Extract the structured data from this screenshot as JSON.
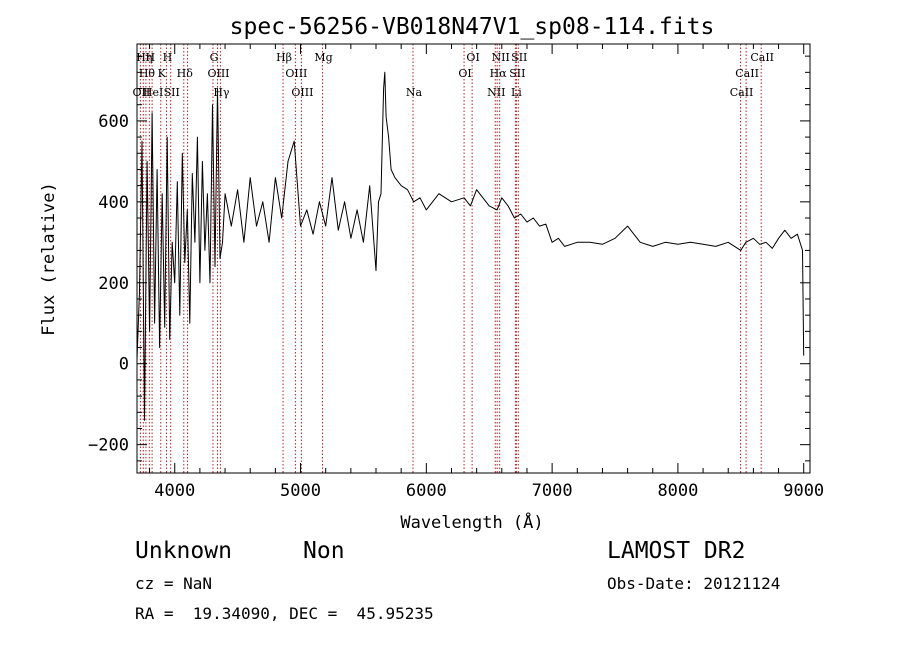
{
  "chart_data": {
    "type": "line",
    "title": "spec-56256-VB018N47V1_sp08-114.fits",
    "xlabel": "Wavelength (Å)",
    "ylabel": "Flux (relative)",
    "xlim": [
      3700,
      9050
    ],
    "ylim": [
      -270,
      790
    ],
    "x_ticks": [
      4000,
      5000,
      6000,
      7000,
      8000,
      9000
    ],
    "y_ticks": [
      -200,
      0,
      200,
      400,
      600
    ],
    "x_tick_labels": [
      "4000",
      "5000",
      "6000",
      "7000",
      "8000",
      "9000"
    ],
    "y_tick_labels": [
      "−200",
      "0",
      "200",
      "400",
      "600"
    ],
    "grid": false,
    "series": [
      {
        "color": "#000000",
        "x": [
          3700,
          3720,
          3740,
          3760,
          3780,
          3800,
          3820,
          3840,
          3860,
          3880,
          3900,
          3920,
          3940,
          3960,
          3980,
          4000,
          4020,
          4040,
          4060,
          4080,
          4100,
          4120,
          4140,
          4160,
          4180,
          4200,
          4220,
          4240,
          4260,
          4280,
          4300,
          4320,
          4340,
          4360,
          4380,
          4400,
          4450,
          4500,
          4550,
          4600,
          4650,
          4700,
          4750,
          4800,
          4850,
          4900,
          4950,
          5000,
          5050,
          5100,
          5150,
          5200,
          5250,
          5300,
          5350,
          5400,
          5450,
          5500,
          5550,
          5600,
          5620,
          5640,
          5660,
          5670,
          5680,
          5700,
          5720,
          5750,
          5800,
          5850,
          5900,
          5950,
          6000,
          6100,
          6200,
          6300,
          6350,
          6400,
          6500,
          6563,
          6600,
          6650,
          6700,
          6750,
          6800,
          6850,
          6900,
          6950,
          7000,
          7050,
          7100,
          7200,
          7300,
          7400,
          7500,
          7600,
          7700,
          7800,
          7900,
          8000,
          8100,
          8200,
          8300,
          8400,
          8500,
          8540,
          8600,
          8650,
          8700,
          8750,
          8800,
          8850,
          8900,
          8950,
          8990,
          9000
        ],
        "y": [
          10,
          180,
          550,
          -140,
          500,
          80,
          620,
          100,
          480,
          40,
          420,
          90,
          560,
          60,
          300,
          200,
          450,
          120,
          520,
          250,
          380,
          100,
          470,
          300,
          560,
          200,
          500,
          280,
          420,
          200,
          640,
          240,
          680,
          260,
          300,
          420,
          340,
          430,
          300,
          460,
          340,
          400,
          300,
          460,
          360,
          500,
          550,
          340,
          380,
          320,
          400,
          340,
          460,
          330,
          400,
          310,
          380,
          300,
          440,
          230,
          400,
          420,
          680,
          720,
          610,
          560,
          480,
          460,
          440,
          430,
          400,
          410,
          380,
          420,
          400,
          410,
          390,
          430,
          390,
          380,
          410,
          390,
          360,
          370,
          350,
          360,
          340,
          345,
          300,
          310,
          290,
          300,
          300,
          295,
          310,
          340,
          300,
          290,
          300,
          295,
          300,
          295,
          290,
          300,
          280,
          300,
          310,
          295,
          300,
          285,
          310,
          330,
          310,
          320,
          280,
          20
        ]
      }
    ],
    "line_markers": [
      {
        "x": 3727,
        "label": "OII",
        "row": 3
      },
      {
        "x": 3750,
        "label": "Hη",
        "row": 1
      },
      {
        "x": 3771,
        "label": "Hθ",
        "row": 2
      },
      {
        "x": 3798,
        "label": "H",
        "row": 1
      },
      {
        "x": 3820,
        "label": "HeI",
        "row": 3
      },
      {
        "x": 3889,
        "label": "K",
        "row": 2
      },
      {
        "x": 3934,
        "label": "H",
        "row": 1
      },
      {
        "x": 3968,
        "label": "SII",
        "row": 3
      },
      {
        "x": 4072,
        "label": "Hδ",
        "row": 2
      },
      {
        "x": 4102,
        "label": "",
        "row": 0
      },
      {
        "x": 4304,
        "label": "G",
        "row": 1
      },
      {
        "x": 4340,
        "label": "OIII",
        "row": 2
      },
      {
        "x": 4363,
        "label": "Hγ",
        "row": 3
      },
      {
        "x": 4861,
        "label": "Hβ",
        "row": 1
      },
      {
        "x": 4959,
        "label": "OIII",
        "row": 2
      },
      {
        "x": 5007,
        "label": "OIII",
        "row": 3
      },
      {
        "x": 5175,
        "label": "Mg",
        "row": 1
      },
      {
        "x": 5894,
        "label": "Na",
        "row": 3
      },
      {
        "x": 6300,
        "label": "OI",
        "row": 2
      },
      {
        "x": 6364,
        "label": "OI",
        "row": 1
      },
      {
        "x": 6548,
        "label": "NII",
        "row": 3
      },
      {
        "x": 6563,
        "label": "Hα",
        "row": 2
      },
      {
        "x": 6583,
        "label": "NII",
        "row": 1
      },
      {
        "x": 6708,
        "label": "Li",
        "row": 3
      },
      {
        "x": 6716,
        "label": "SII",
        "row": 2
      },
      {
        "x": 6731,
        "label": "SII",
        "row": 1
      },
      {
        "x": 8498,
        "label": "CaII",
        "row": 3
      },
      {
        "x": 8542,
        "label": "CaII",
        "row": 2
      },
      {
        "x": 8662,
        "label": "CaII",
        "row": 1
      }
    ],
    "marker_color": "#b22222"
  },
  "info": {
    "class_text": "Unknown",
    "subclass_text": "Non",
    "survey": "LAMOST DR2",
    "cz_text": "cz = NaN",
    "obs_date": "Obs-Date: 20121124",
    "coords": "RA =  19.34090, DEC =  45.95235"
  }
}
